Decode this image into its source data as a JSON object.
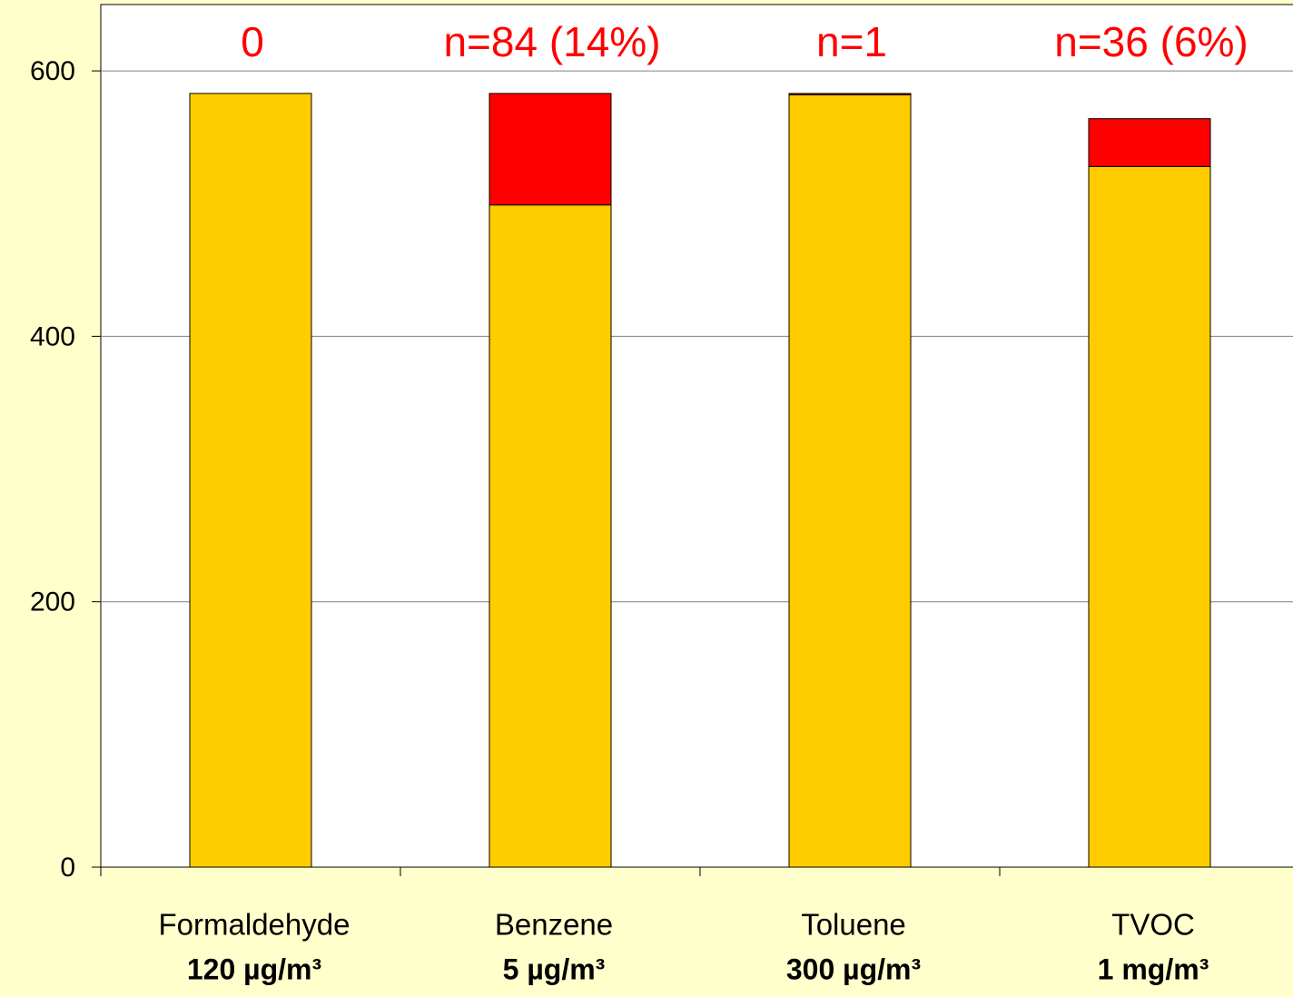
{
  "chart_data": {
    "type": "stacked_bar",
    "categories": [
      "Formaldehyde",
      "Benzene",
      "Toluene",
      "TVOC"
    ],
    "limits": [
      "120 µg/m³",
      "5 µg/m³",
      "300 µg/m³",
      "1 mg/m³"
    ],
    "annotations": [
      "0",
      "n=84 (14%)",
      "n=1",
      "n=36 (6%)"
    ],
    "series": [
      {
        "color": "#FFCC00",
        "values": [
          583,
          499,
          582,
          528
        ]
      },
      {
        "color": "#FF0000",
        "values": [
          0,
          84,
          1,
          36
        ]
      }
    ],
    "ylim": [
      0,
      650
    ],
    "yticks": [
      0,
      200,
      400,
      600
    ],
    "grid": true
  }
}
